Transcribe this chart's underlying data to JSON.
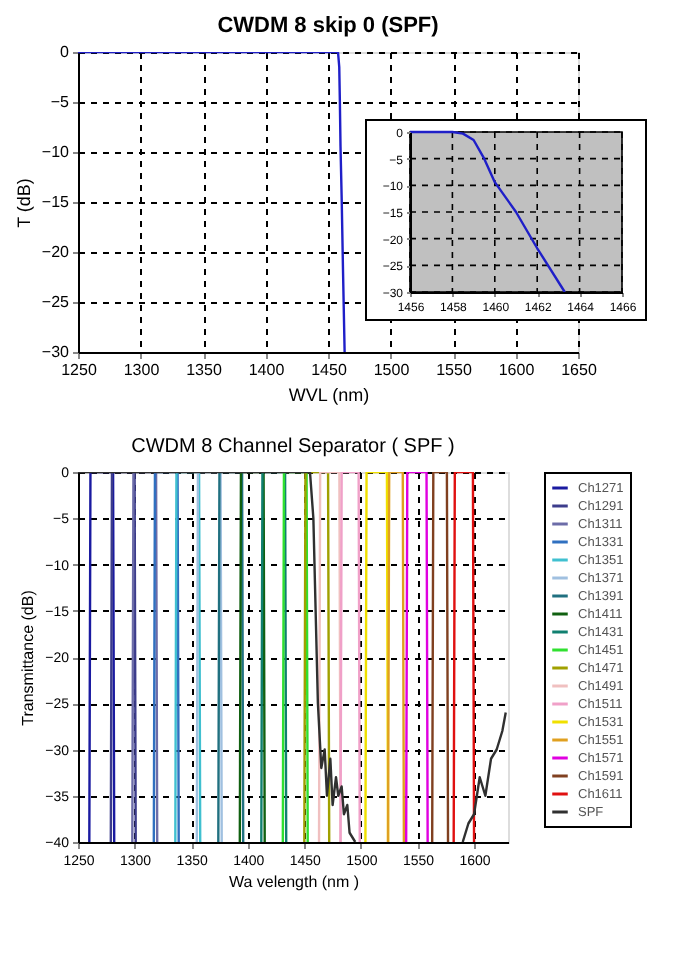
{
  "chart_data": [
    {
      "type": "line",
      "title": "CWDM 8 skip 0 (SPF)",
      "xlabel": "WVL (nm)",
      "ylabel": "T (dB)",
      "xlim": [
        1250,
        1650
      ],
      "ylim": [
        -30,
        0
      ],
      "xticks": [
        1250,
        1300,
        1350,
        1400,
        1450,
        1500,
        1550,
        1600,
        1650
      ],
      "yticks": [
        -30,
        -25,
        -20,
        -15,
        -10,
        -5,
        0
      ],
      "grid": true,
      "legend": false,
      "series": [
        {
          "color": "#1f1fc8",
          "x": [
            1250,
            1458,
            1459,
            1459.5,
            1460,
            1461,
            1462,
            1463.3
          ],
          "values": [
            0,
            0,
            -1.5,
            -5,
            -9.4,
            -15,
            -21.8,
            -30
          ]
        }
      ]
    },
    {
      "type": "line",
      "xlim": [
        1456,
        1466
      ],
      "ylim": [
        -30,
        0
      ],
      "xticks": [
        1456,
        1458,
        1460,
        1462,
        1464,
        1466
      ],
      "yticks": [
        -30,
        -25,
        -20,
        -15,
        -10,
        -5,
        0
      ],
      "grid": true,
      "series": [
        {
          "color": "#1f1fc8",
          "x": [
            1456,
            1458,
            1458.5,
            1459,
            1459.5,
            1460,
            1461,
            1462,
            1463.3
          ],
          "values": [
            0,
            0,
            -0.3,
            -1.5,
            -5,
            -9.4,
            -15,
            -21.8,
            -30
          ]
        }
      ]
    },
    {
      "type": "line",
      "title": "CWDM 8 Channel Separator ( SPF )",
      "xlabel": "Wa velength (nm )",
      "ylabel": "Transmittance (dB)",
      "xlim": [
        1250,
        1630
      ],
      "ylim": [
        -40,
        0
      ],
      "xticks": [
        1250,
        1300,
        1350,
        1400,
        1450,
        1500,
        1550,
        1600
      ],
      "yticks": [
        -40,
        -35,
        -30,
        -25,
        -20,
        -15,
        -10,
        -5,
        0
      ],
      "grid": true,
      "legend": "right",
      "series": [
        {
          "name": "Ch1271",
          "color": "#1a1aa0",
          "x": [
            1260,
            1261,
            1281,
            1282
          ],
          "values": [
            -40,
            0,
            0,
            -40
          ]
        },
        {
          "name": "Ch1291",
          "color": "#3c3c8c",
          "x": [
            1279,
            1280,
            1300,
            1301
          ],
          "values": [
            -40,
            0,
            0,
            -40
          ]
        },
        {
          "name": "Ch1311",
          "color": "#6c6ca8",
          "x": [
            1298,
            1299,
            1319,
            1320
          ],
          "values": [
            -40,
            0,
            0,
            -40
          ]
        },
        {
          "name": "Ch1331",
          "color": "#3070c0",
          "x": [
            1317,
            1318,
            1338,
            1339
          ],
          "values": [
            -40,
            0,
            0,
            -40
          ]
        },
        {
          "name": "Ch1351",
          "color": "#40c0d0",
          "x": [
            1336,
            1337,
            1357,
            1358
          ],
          "values": [
            -40,
            0,
            0,
            -40
          ]
        },
        {
          "name": "Ch1371",
          "color": "#a0c0e0",
          "x": [
            1355,
            1356,
            1376,
            1377
          ],
          "values": [
            -40,
            0,
            0,
            -40
          ]
        },
        {
          "name": "Ch1391",
          "color": "#207080",
          "x": [
            1374,
            1375,
            1395,
            1396
          ],
          "values": [
            -40,
            0,
            0,
            -40
          ]
        },
        {
          "name": "Ch1411",
          "color": "#106010",
          "x": [
            1393,
            1394,
            1414,
            1415
          ],
          "values": [
            -40,
            0,
            0,
            -40
          ]
        },
        {
          "name": "Ch1431",
          "color": "#108070",
          "x": [
            1412,
            1413,
            1433,
            1434
          ],
          "values": [
            -40,
            0,
            0,
            -40
          ]
        },
        {
          "name": "Ch1451",
          "color": "#30e030",
          "x": [
            1431,
            1432,
            1452,
            1453
          ],
          "values": [
            -40,
            0,
            0,
            -40
          ]
        },
        {
          "name": "Ch1471",
          "color": "#a0a000",
          "x": [
            1450,
            1451,
            1471,
            1472
          ],
          "values": [
            -40,
            0,
            0,
            -40
          ]
        },
        {
          "name": "Ch1491",
          "color": "#f0c0c0",
          "x": [
            1463,
            1464,
            1481,
            1482
          ],
          "values": [
            -40,
            0,
            0,
            -40
          ]
        },
        {
          "name": "Ch1511",
          "color": "#f0a0c8",
          "x": [
            1482,
            1483,
            1498,
            1499
          ],
          "values": [
            -40,
            0,
            0,
            -40
          ]
        },
        {
          "name": "Ch1531",
          "color": "#f0e000",
          "x": [
            1504,
            1505,
            1523,
            1524
          ],
          "values": [
            -40,
            0,
            0,
            -40
          ]
        },
        {
          "name": "Ch1551",
          "color": "#e0a020",
          "x": [
            1524,
            1525,
            1537,
            1538
          ],
          "values": [
            -40,
            0,
            0,
            -40
          ]
        },
        {
          "name": "Ch1571",
          "color": "#e000e0",
          "x": [
            1540,
            1541,
            1558,
            1559
          ],
          "values": [
            -40,
            0,
            0,
            -40
          ]
        },
        {
          "name": "Ch1591",
          "color": "#804020",
          "x": [
            1563,
            1564,
            1576,
            1577
          ],
          "values": [
            -40,
            0,
            0,
            -40
          ]
        },
        {
          "name": "Ch1611",
          "color": "#e01010",
          "x": [
            1582,
            1583,
            1599,
            1600
          ],
          "values": [
            -40,
            0,
            0,
            -40
          ]
        },
        {
          "name": "SPF",
          "color": "#303030",
          "x": [
            1250,
            1455,
            1458,
            1462,
            1465,
            1468,
            1470,
            1473,
            1475,
            1478,
            1480,
            1483,
            1485,
            1488,
            1490,
            1495,
            1500,
            1590,
            1595,
            1600,
            1605,
            1610,
            1615,
            1620,
            1625,
            1628
          ],
          "values": [
            0,
            0,
            -5,
            -25,
            -32,
            -30,
            -35,
            -31,
            -36,
            -33,
            -35,
            -34,
            -37,
            -36,
            -39,
            -40,
            null,
            -40,
            -38,
            -37,
            -33,
            -35,
            -31,
            -30,
            -28,
            -26
          ]
        }
      ]
    }
  ]
}
